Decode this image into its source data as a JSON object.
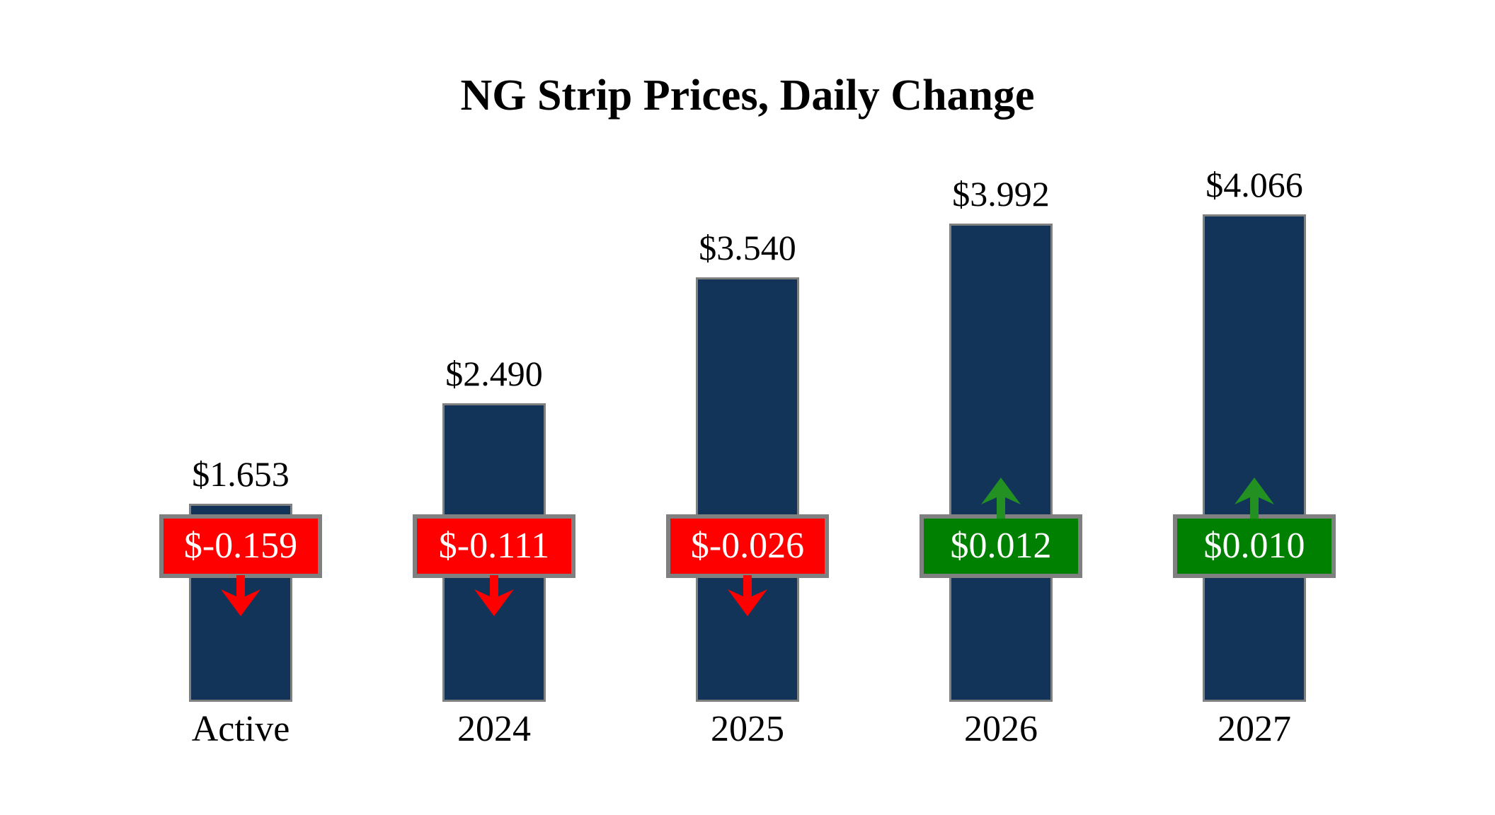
{
  "chart_data": {
    "type": "bar",
    "title": "NG Strip Prices, Daily Change",
    "categories": [
      "Active",
      "2024",
      "2025",
      "2026",
      "2027"
    ],
    "series": [
      {
        "name": "strip_price",
        "values": [
          1.653,
          2.49,
          3.54,
          3.992,
          4.066
        ]
      },
      {
        "name": "daily_change",
        "values": [
          -0.159,
          -0.111,
          -0.026,
          0.012,
          0.01
        ]
      }
    ],
    "price_labels": [
      "$1.653",
      "$2.490",
      "$3.540",
      "$3.992",
      "$4.066"
    ],
    "change_labels": [
      "$-0.159",
      "$-0.111",
      "$-0.026",
      "$0.012",
      "$0.010"
    ],
    "change_directions": [
      "down",
      "down",
      "down",
      "up",
      "up"
    ],
    "xlabel": "",
    "ylabel": "",
    "ylim": [
      0,
      4.5
    ],
    "grid": false,
    "legend": false,
    "colors": {
      "bar_fill": "#123459",
      "bar_border": "#808080",
      "negative_badge": "#FF0000",
      "positive_badge": "#008000",
      "negative_arrow": "#FF0000",
      "positive_arrow": "#229122",
      "badge_border": "#808080",
      "badge_text": "#FFFFFF",
      "label_text": "#000000"
    }
  }
}
